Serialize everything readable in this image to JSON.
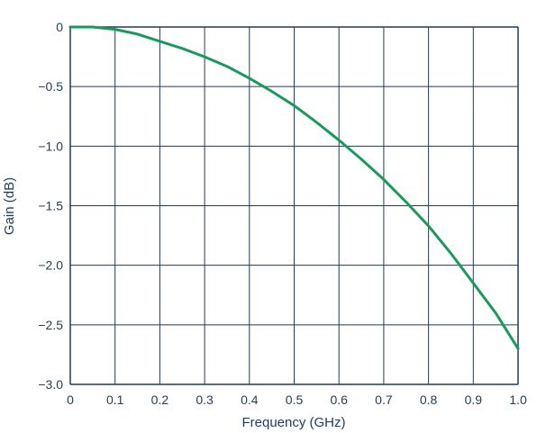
{
  "chart_data": {
    "type": "line",
    "title": "",
    "xlabel": "Frequency (GHz)",
    "ylabel": "Gain (dB)",
    "xlim": [
      0,
      1.0
    ],
    "ylim": [
      -3.0,
      0
    ],
    "grid": true,
    "x_ticks": [
      "0",
      "0.1",
      "0.2",
      "0.3",
      "0.4",
      "0.5",
      "0.6",
      "0.7",
      "0.8",
      "0.9",
      "1.0"
    ],
    "y_ticks": [
      "0",
      "−0.5",
      "−1.0",
      "−1.5",
      "−2.0",
      "−2.5",
      "−3.0"
    ],
    "series": [
      {
        "color": "#1a9a5a",
        "x": [
          0,
          0.05,
          0.1,
          0.15,
          0.2,
          0.25,
          0.3,
          0.35,
          0.4,
          0.45,
          0.5,
          0.55,
          0.6,
          0.65,
          0.7,
          0.75,
          0.8,
          0.85,
          0.9,
          0.95,
          1.0
        ],
        "y": [
          0,
          0,
          -0.02,
          -0.06,
          -0.12,
          -0.18,
          -0.25,
          -0.33,
          -0.43,
          -0.54,
          -0.66,
          -0.8,
          -0.95,
          -1.11,
          -1.28,
          -1.47,
          -1.67,
          -1.9,
          -2.15,
          -2.4,
          -2.7
        ]
      }
    ]
  },
  "colors": {
    "grid": "#1f3c5a",
    "text": "#1f3c5a",
    "curve": "#1a9a5a"
  }
}
